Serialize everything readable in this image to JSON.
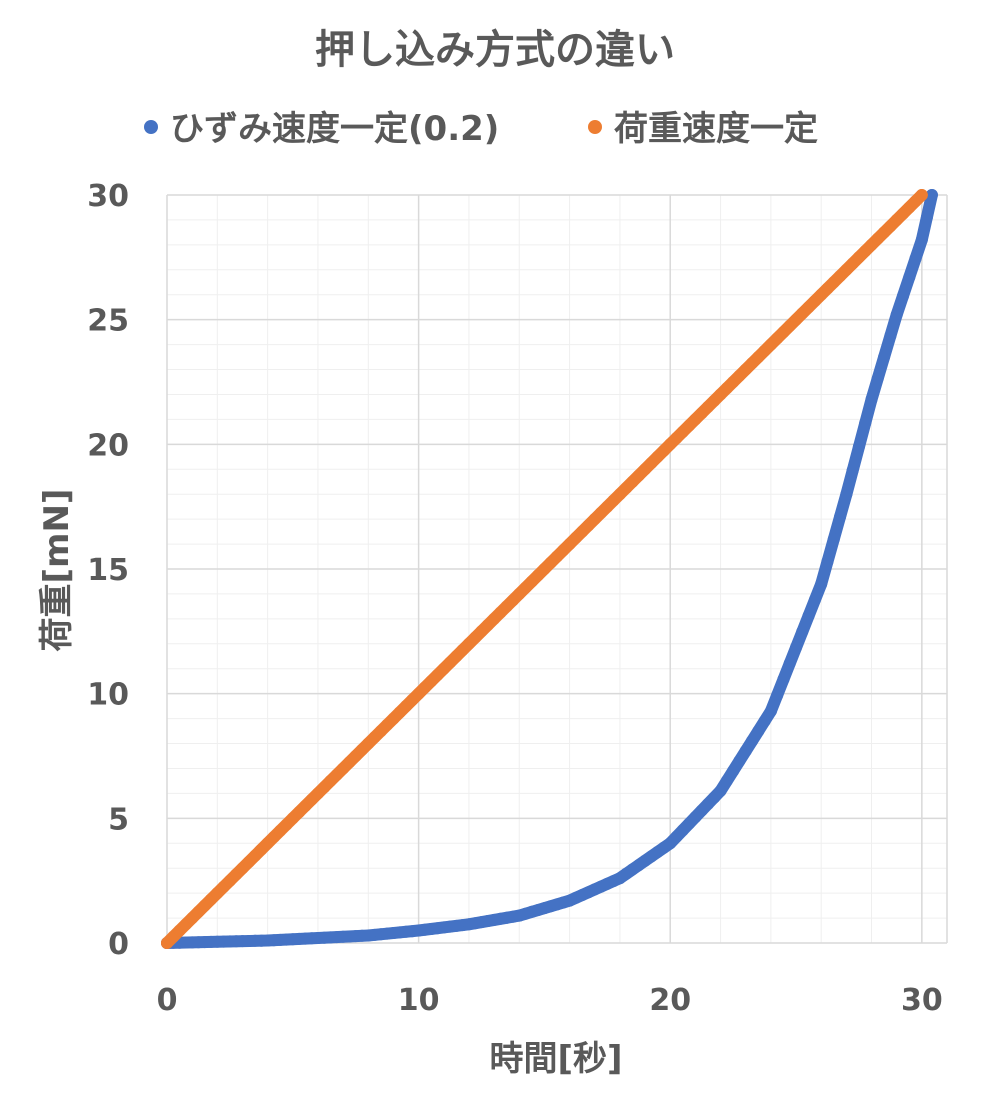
{
  "chart_data": {
    "type": "scatter",
    "title": "押し込み方式の違い",
    "xlabel": "時間[秒]",
    "ylabel": "荷重[mN]",
    "xlim": [
      0,
      31
    ],
    "ylim": [
      0,
      30
    ],
    "x_ticks": [
      "0",
      "10",
      "20",
      "30"
    ],
    "y_ticks": [
      "0",
      "5",
      "10",
      "15",
      "20",
      "25",
      "30"
    ],
    "x_tick_values": [
      0,
      10,
      20,
      30
    ],
    "y_tick_values": [
      0,
      5,
      10,
      15,
      20,
      25,
      30
    ],
    "x_minor_step": 2,
    "y_minor_step": 1,
    "grid": true,
    "legend_position": "top",
    "series": [
      {
        "name": "ひずみ速度一定(0.2)",
        "color": "#4472C4",
        "x": [
          0,
          2,
          4,
          6,
          8,
          10,
          12,
          14,
          16,
          18,
          20,
          22,
          24,
          26,
          27,
          28,
          29,
          30,
          30.4
        ],
        "y": [
          0,
          0.05,
          0.1,
          0.2,
          0.3,
          0.5,
          0.75,
          1.1,
          1.7,
          2.6,
          4.0,
          6.1,
          9.3,
          14.4,
          18.0,
          21.8,
          25.2,
          28.2,
          30.0
        ]
      },
      {
        "name": "荷重速度一定",
        "color": "#ED7D31",
        "x": [
          0,
          5,
          10,
          15,
          20,
          25,
          30
        ],
        "y": [
          0,
          5,
          10,
          15,
          20,
          25,
          30
        ]
      }
    ]
  }
}
